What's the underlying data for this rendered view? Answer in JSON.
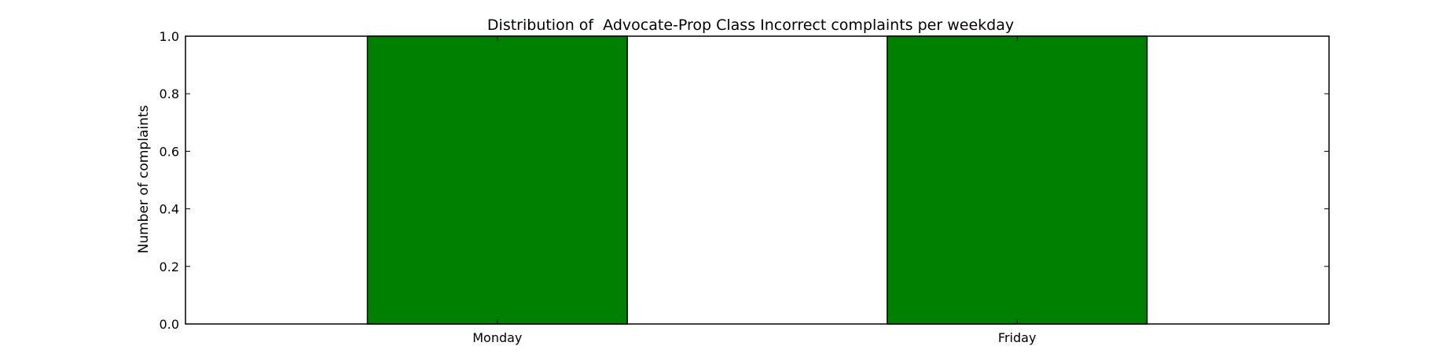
{
  "chart_data": {
    "type": "bar",
    "title": "Distribution of  Advocate-Prop Class Incorrect complaints per weekday",
    "xlabel": "",
    "ylabel": "Number of complaints",
    "categories": [
      "Monday",
      "Friday"
    ],
    "values": [
      1,
      1
    ],
    "ylim": [
      0,
      1
    ],
    "yticks": [
      "0.0",
      "0.2",
      "0.4",
      "0.6",
      "0.8",
      "1.0"
    ],
    "grid": false,
    "legend": "none",
    "bar_color": "#008000",
    "edge_color": "#000000"
  }
}
